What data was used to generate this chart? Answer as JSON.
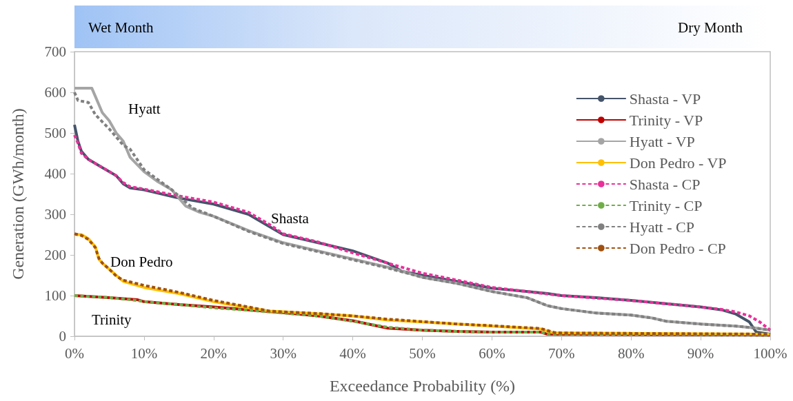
{
  "chart_data": {
    "type": "line",
    "xlabel": "Exceedance Probability (%)",
    "ylabel": "Generation (GWh/month)",
    "xlim": [
      0,
      100
    ],
    "xticks": [
      {
        "value": 0,
        "label": "0%"
      },
      {
        "value": 10,
        "label": "10%"
      },
      {
        "value": 20,
        "label": "20%"
      },
      {
        "value": 30,
        "label": "30%"
      },
      {
        "value": 40,
        "label": "40%"
      },
      {
        "value": 50,
        "label": "50%"
      },
      {
        "value": 60,
        "label": "60%"
      },
      {
        "value": 70,
        "label": "70%"
      },
      {
        "value": 80,
        "label": "80%"
      },
      {
        "value": 90,
        "label": "90%"
      },
      {
        "value": 100,
        "label": "100%"
      }
    ],
    "ylim": [
      0,
      700
    ],
    "yticks": [
      0,
      100,
      200,
      300,
      400,
      500,
      600,
      700
    ],
    "grid": false,
    "legend": "top right",
    "marker": "none",
    "annotations": [
      "Wet Month",
      "Dry Month",
      "Hyatt",
      "Shasta",
      "Don Pedro",
      "Trinity"
    ],
    "series": [
      {
        "name": "Shasta - VP",
        "color": "#44546a",
        "line_style": "solid",
        "x": [
          0,
          0.5,
          1,
          2,
          4,
          6,
          7,
          8,
          10,
          15,
          20,
          25,
          28,
          30,
          35,
          40,
          45,
          47,
          50,
          55,
          58,
          60,
          65,
          68,
          70,
          75,
          80,
          85,
          90,
          93,
          95,
          97,
          98,
          100
        ],
        "values": [
          520,
          480,
          455,
          435,
          415,
          395,
          375,
          365,
          360,
          340,
          325,
          300,
          270,
          250,
          230,
          210,
          180,
          160,
          150,
          135,
          125,
          118,
          110,
          105,
          100,
          95,
          88,
          80,
          72,
          65,
          55,
          35,
          10,
          5
        ]
      },
      {
        "name": "Trinity - VP",
        "color": "#c00000",
        "line_style": "solid",
        "x": [
          0,
          5,
          9,
          10,
          15,
          20,
          25,
          30,
          35,
          40,
          45,
          50,
          55,
          60,
          67,
          68,
          100
        ],
        "values": [
          100,
          95,
          90,
          85,
          78,
          72,
          65,
          58,
          50,
          38,
          20,
          15,
          12,
          10,
          10,
          5,
          3
        ]
      },
      {
        "name": "Hyatt - VP",
        "color": "#a5a5a5",
        "line_style": "solid",
        "x": [
          0,
          2.5,
          3,
          4,
          5,
          6,
          7,
          8,
          10,
          12,
          14,
          16,
          18,
          20,
          25,
          30,
          35,
          40,
          45,
          50,
          55,
          60,
          65,
          68,
          70,
          75,
          80,
          83,
          85,
          90,
          95,
          98,
          100
        ],
        "values": [
          610,
          610,
          590,
          550,
          530,
          500,
          480,
          440,
          405,
          380,
          360,
          320,
          305,
          295,
          260,
          230,
          210,
          190,
          170,
          145,
          130,
          110,
          95,
          75,
          68,
          57,
          52,
          45,
          37,
          30,
          25,
          20,
          15
        ]
      },
      {
        "name": "Don Pedro - VP",
        "color": "#ffc000",
        "line_style": "solid",
        "x": [
          0,
          1,
          2,
          3,
          3.5,
          4,
          5,
          6,
          7,
          10,
          15,
          20,
          25,
          28,
          30,
          35,
          40,
          45,
          50,
          55,
          60,
          65,
          67,
          68,
          69,
          70,
          100
        ],
        "values": [
          250,
          250,
          240,
          220,
          190,
          180,
          165,
          150,
          135,
          120,
          105,
          85,
          70,
          62,
          60,
          55,
          50,
          40,
          35,
          30,
          25,
          20,
          18,
          12,
          8,
          8,
          5
        ]
      },
      {
        "name": "Shasta - CP",
        "color": "#e8309a",
        "line_style": "dashed",
        "x": [
          0,
          0.5,
          1,
          2,
          4,
          6,
          7,
          8,
          10,
          15,
          20,
          25,
          28,
          30,
          35,
          40,
          45,
          50,
          55,
          60,
          65,
          70,
          75,
          80,
          85,
          90,
          93,
          95,
          97,
          98.5,
          100
        ],
        "values": [
          495,
          475,
          450,
          435,
          415,
          395,
          378,
          368,
          362,
          345,
          330,
          305,
          275,
          252,
          232,
          205,
          180,
          155,
          138,
          120,
          110,
          100,
          94,
          88,
          80,
          72,
          66,
          60,
          50,
          35,
          15
        ]
      },
      {
        "name": "Trinity - CP",
        "color": "#70ad47",
        "line_style": "dashed",
        "x": [
          0,
          5,
          9,
          10,
          15,
          20,
          25,
          30,
          35,
          40,
          45,
          50,
          55,
          60,
          67,
          68,
          100
        ],
        "values": [
          100,
          95,
          88,
          85,
          78,
          70,
          64,
          57,
          50,
          37,
          22,
          15,
          12,
          10,
          10,
          6,
          3
        ]
      },
      {
        "name": "Hyatt - CP",
        "color": "#808080",
        "line_style": "dashed",
        "x": [
          0,
          0.5,
          2,
          3,
          5,
          7,
          8,
          10,
          12,
          14,
          17,
          20,
          25,
          30,
          35,
          40,
          45,
          50,
          55,
          60,
          65,
          68,
          70,
          75,
          80,
          83,
          85,
          90,
          95,
          98,
          100
        ],
        "values": [
          600,
          580,
          575,
          545,
          510,
          470,
          460,
          410,
          385,
          360,
          315,
          295,
          258,
          228,
          208,
          188,
          168,
          145,
          130,
          110,
          95,
          75,
          68,
          57,
          52,
          45,
          37,
          30,
          25,
          20,
          15
        ]
      },
      {
        "name": "Don Pedro - CP",
        "color": "#a0500f",
        "line_style": "dashed",
        "x": [
          0,
          1,
          2,
          3,
          3.5,
          4,
          5,
          6,
          7,
          10,
          15,
          20,
          25,
          28,
          30,
          35,
          40,
          45,
          50,
          55,
          60,
          65,
          67,
          68,
          69,
          70,
          100
        ],
        "values": [
          252,
          248,
          238,
          218,
          192,
          180,
          165,
          148,
          138,
          125,
          108,
          88,
          72,
          62,
          60,
          56,
          50,
          42,
          36,
          30,
          26,
          21,
          19,
          14,
          9,
          8,
          5
        ]
      }
    ]
  }
}
